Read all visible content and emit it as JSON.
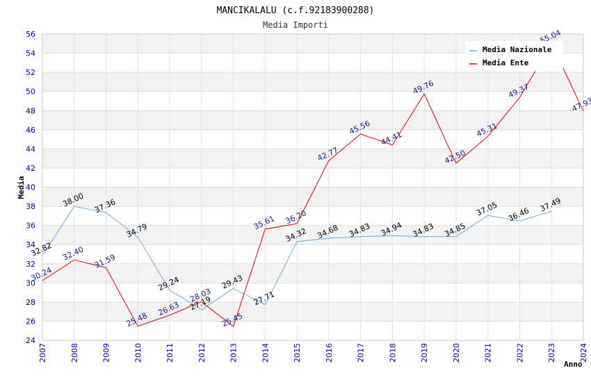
{
  "chart_data": {
    "type": "line",
    "title": "MANCIKALALU (c.f.92183900288)",
    "subtitle": "Media Importi",
    "xlabel": "Anno",
    "ylabel": "Media",
    "ylim": [
      24,
      56
    ],
    "y_ticks": [
      "24",
      "26",
      "28",
      "30",
      "32",
      "34",
      "36",
      "38",
      "40",
      "42",
      "44",
      "46",
      "48",
      "50",
      "52",
      "54",
      "56"
    ],
    "x": [
      "2007",
      "2008",
      "2009",
      "2010",
      "2011",
      "2012",
      "2013",
      "2014",
      "2015",
      "2016",
      "2017",
      "2018",
      "2019",
      "2020",
      "2021",
      "2022",
      "2023",
      "2024"
    ],
    "grid": "horizontal, alternating bands",
    "legend_position": "top-right",
    "series": [
      {
        "name": "Media Nazionale",
        "color": "#6aaee6",
        "values": [
          32.82,
          38.0,
          37.36,
          34.79,
          29.24,
          27.19,
          29.43,
          27.71,
          34.32,
          34.68,
          34.83,
          34.94,
          34.83,
          34.85,
          37.05,
          36.46,
          37.49,
          null
        ],
        "labels": [
          "32.82",
          "38.00",
          "37.36",
          "34.79",
          "29.24",
          "27.19",
          "29.43",
          "27.71",
          "34.32",
          "34.68",
          "34.83",
          "34.94",
          "34.83",
          "34.85",
          "37.05",
          "36.46",
          "37.49",
          null
        ]
      },
      {
        "name": "Media Ente",
        "color": "#e60000",
        "values": [
          30.24,
          32.4,
          31.59,
          25.48,
          26.63,
          28.03,
          25.45,
          35.61,
          36.2,
          42.77,
          45.56,
          44.41,
          49.76,
          42.5,
          45.31,
          49.37,
          55.04,
          47.93
        ],
        "labels": [
          "30.24",
          "32.40",
          "31.59",
          "25.48",
          "26.63",
          "28.03",
          "25.45",
          "35.61",
          "36.20",
          "42.77",
          "45.56",
          "44.41",
          "49.76",
          "42.50",
          "45.31",
          "49.37",
          "55.04",
          "47.93"
        ]
      }
    ]
  }
}
